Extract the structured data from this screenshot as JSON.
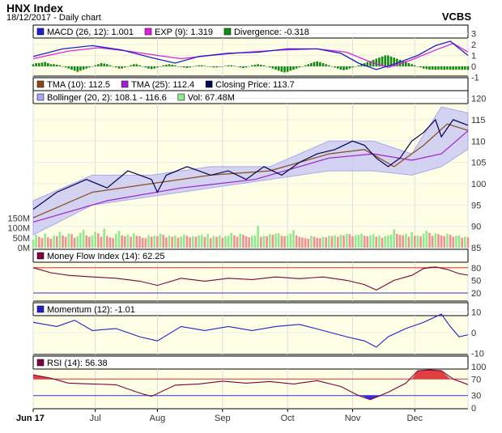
{
  "header": {
    "title": "HNX Index",
    "subtitle": "18/12/2017 - Daily chart",
    "brand": "VCBS"
  },
  "panels": {
    "macd": {
      "legend": [
        {
          "label": "MACD (26, 12): 1.001",
          "color": "#1f1fd0"
        },
        {
          "label": "EXP (9): 1.319",
          "color": "#e020e0"
        },
        {
          "label": "Divergence: -0.318",
          "color": "#128a12"
        }
      ],
      "y_ticks": [
        "3",
        "2",
        "1",
        "0",
        "-1"
      ]
    },
    "price": {
      "legend_row1": [
        {
          "label": "TMA (10): 112.5",
          "color": "#8a4a1a"
        },
        {
          "label": "TMA (25): 112.4",
          "color": "#a020d0"
        },
        {
          "label": "Closing Price: 113.7",
          "color": "#000050"
        }
      ],
      "legend_row2": [
        {
          "label": "Bollinger (20, 2): 108.1 - 116.6",
          "color": "#a8a8f0"
        },
        {
          "label": "Vol: 67.48M",
          "color": "#90e890"
        }
      ],
      "y_ticks": [
        "120",
        "115",
        "110",
        "105",
        "100",
        "95",
        "90",
        "85"
      ],
      "vol_ticks": [
        "150M",
        "100M",
        "50M",
        "0M"
      ]
    },
    "mfi": {
      "legend": [
        {
          "label": "Money Flow Index (14): 62.25",
          "color": "#800040"
        }
      ],
      "y_ticks": [
        "80",
        "50",
        "20"
      ]
    },
    "momentum": {
      "legend": [
        {
          "label": "Momentum (12): -1.01",
          "color": "#1f1fd0"
        }
      ],
      "y_ticks": [
        "10",
        "0",
        "-10"
      ]
    },
    "rsi": {
      "legend": [
        {
          "label": "RSI (14): 56.38",
          "color": "#800040"
        }
      ],
      "y_ticks": [
        "100",
        "70",
        "30",
        "0"
      ]
    }
  },
  "x_axis": {
    "labels": [
      "Jun 17",
      "Jul",
      "Aug",
      "Sep",
      "Oct",
      "Nov",
      "Dec"
    ]
  },
  "chart_data": {
    "type": "line",
    "title": "HNX Index",
    "subtitle": "18/12/2017 - Daily chart",
    "price_ylim": [
      85,
      122
    ],
    "volume_ylim": [
      0,
      150
    ],
    "volume_unit": "M",
    "months": [
      "Jun 17",
      "Jul",
      "Aug",
      "Sep",
      "Oct",
      "Nov",
      "Dec"
    ],
    "closing_price": [
      [
        0,
        94
      ],
      [
        8,
        98
      ],
      [
        18,
        101
      ],
      [
        25,
        99
      ],
      [
        32,
        103
      ],
      [
        40,
        101
      ],
      [
        42,
        98
      ],
      [
        45,
        102
      ],
      [
        52,
        104
      ],
      [
        60,
        102
      ],
      [
        66,
        103
      ],
      [
        72,
        101
      ],
      [
        78,
        104
      ],
      [
        84,
        102
      ],
      [
        90,
        105
      ],
      [
        96,
        107
      ],
      [
        102,
        108
      ],
      [
        108,
        110
      ],
      [
        112,
        109
      ],
      [
        116,
        106
      ],
      [
        120,
        104
      ],
      [
        124,
        106
      ],
      [
        128,
        110
      ],
      [
        132,
        112
      ],
      [
        136,
        115
      ],
      [
        138,
        111
      ],
      [
        142,
        115
      ],
      [
        147,
        113.7
      ]
    ],
    "tma10": [
      [
        0,
        92
      ],
      [
        20,
        98
      ],
      [
        40,
        100
      ],
      [
        60,
        102
      ],
      [
        80,
        103
      ],
      [
        100,
        107
      ],
      [
        112,
        108
      ],
      [
        122,
        104
      ],
      [
        132,
        109
      ],
      [
        140,
        114
      ],
      [
        147,
        112.5
      ]
    ],
    "tma25": [
      [
        0,
        91
      ],
      [
        25,
        96
      ],
      [
        50,
        99
      ],
      [
        75,
        101
      ],
      [
        100,
        106
      ],
      [
        115,
        107
      ],
      [
        128,
        105.5
      ],
      [
        138,
        107
      ],
      [
        147,
        112.4
      ]
    ],
    "bollinger_upper": [
      [
        0,
        96
      ],
      [
        20,
        102
      ],
      [
        40,
        102
      ],
      [
        60,
        104
      ],
      [
        80,
        104
      ],
      [
        100,
        110
      ],
      [
        115,
        110
      ],
      [
        128,
        107
      ],
      [
        138,
        118
      ],
      [
        147,
        116.6
      ]
    ],
    "bollinger_lower": [
      [
        0,
        88
      ],
      [
        20,
        95
      ],
      [
        40,
        97
      ],
      [
        60,
        99
      ],
      [
        80,
        101
      ],
      [
        100,
        103
      ],
      [
        115,
        103
      ],
      [
        128,
        102
      ],
      [
        138,
        104
      ],
      [
        147,
        108.1
      ]
    ],
    "volume_M": [
      40,
      65,
      55,
      48,
      70,
      52,
      45,
      60,
      58,
      80,
      62,
      55,
      70,
      68,
      50,
      58,
      75,
      90,
      62,
      55,
      60,
      80,
      72,
      55,
      95,
      60,
      52,
      48,
      70,
      85,
      62,
      58,
      65,
      55,
      72,
      60,
      58,
      50,
      48,
      62,
      55,
      60,
      58,
      70,
      65,
      52,
      60,
      55,
      62,
      50,
      57,
      65,
      60,
      52,
      58,
      55,
      62,
      64,
      54,
      68,
      48,
      60,
      55,
      62,
      50,
      58,
      60,
      75,
      62,
      55,
      70,
      65,
      58,
      52,
      60,
      62,
      110,
      55,
      60,
      58,
      68,
      65,
      70,
      72,
      60,
      58,
      62,
      70,
      88,
      62,
      55,
      52,
      48,
      45,
      60,
      55,
      50,
      48,
      55,
      52,
      60,
      58,
      62,
      55,
      65,
      62,
      70,
      68,
      58,
      62,
      65,
      70,
      60,
      58,
      62,
      68,
      55,
      60,
      50,
      58,
      62,
      65,
      92,
      70,
      65,
      62,
      70,
      55,
      78,
      60,
      62,
      58,
      70,
      85,
      75,
      60,
      72,
      68,
      62,
      58,
      70,
      65,
      55,
      60,
      62,
      50,
      55,
      52
    ],
    "macd": [
      [
        0,
        0.9
      ],
      [
        10,
        1.6
      ],
      [
        20,
        1.9
      ],
      [
        30,
        1.5
      ],
      [
        40,
        0.8
      ],
      [
        48,
        0.3
      ],
      [
        56,
        0.9
      ],
      [
        66,
        1.2
      ],
      [
        76,
        1.3
      ],
      [
        86,
        1.6
      ],
      [
        96,
        1.6
      ],
      [
        104,
        1.2
      ],
      [
        110,
        0.3
      ],
      [
        116,
        -0.3
      ],
      [
        122,
        0.2
      ],
      [
        130,
        1.0
      ],
      [
        136,
        1.9
      ],
      [
        141,
        2.3
      ],
      [
        147,
        1.0
      ]
    ],
    "exp": [
      [
        0,
        0.7
      ],
      [
        12,
        1.4
      ],
      [
        22,
        1.7
      ],
      [
        32,
        1.4
      ],
      [
        42,
        1.0
      ],
      [
        50,
        0.7
      ],
      [
        60,
        1.0
      ],
      [
        72,
        1.3
      ],
      [
        84,
        1.5
      ],
      [
        96,
        1.6
      ],
      [
        106,
        1.3
      ],
      [
        114,
        0.4
      ],
      [
        120,
        -0.1
      ],
      [
        128,
        0.6
      ],
      [
        136,
        1.5
      ],
      [
        142,
        2.1
      ],
      [
        147,
        1.32
      ]
    ],
    "divergence": [
      0.2,
      0.3,
      0.3,
      0.35,
      0.4,
      0.3,
      0.2,
      0.2,
      0.15,
      0.1,
      0.0,
      -0.1,
      -0.2,
      -0.3,
      -0.4,
      -0.5,
      -0.4,
      -0.3,
      -0.2,
      -0.1,
      0.0,
      0.1,
      0.2,
      0.3,
      0.25,
      0.2,
      0.1,
      0.0,
      -0.1,
      -0.2,
      -0.2,
      -0.1,
      0.0,
      0.1,
      0.2,
      0.2,
      0.1,
      0.0,
      -0.1,
      -0.2,
      -0.25,
      -0.2,
      -0.1,
      0.0,
      0.1,
      0.15,
      0.2,
      0.15,
      0.1,
      0.0,
      -0.05,
      -0.1,
      -0.15,
      -0.1,
      0.0,
      0.05,
      0.1,
      0.1,
      0.05,
      0.0,
      -0.05,
      -0.1,
      -0.1,
      -0.05,
      0.0,
      0.05,
      0.1,
      0.1,
      0.05,
      0.0,
      -0.1,
      -0.15,
      -0.1,
      0.0,
      0.1,
      0.15,
      0.2,
      0.15,
      0.1,
      0.0,
      -0.1,
      -0.2,
      -0.3,
      -0.4,
      -0.5,
      -0.55,
      -0.5,
      -0.4,
      -0.3,
      -0.2,
      -0.1,
      0.0,
      0.1,
      0.2,
      0.3,
      0.4,
      0.45,
      0.4,
      0.3,
      0.2,
      0.1,
      0.0,
      -0.1,
      -0.2,
      -0.3,
      -0.35,
      -0.3,
      -0.2,
      -0.1,
      0.0,
      0.1,
      0.2,
      0.3,
      0.4,
      0.5,
      0.6,
      0.7,
      0.8,
      0.9,
      1.0,
      1.0,
      0.9,
      0.8,
      0.7,
      0.6,
      0.5,
      0.4,
      0.3,
      0.2,
      0.1,
      0.0,
      -0.1,
      -0.2,
      -0.25,
      -0.3,
      -0.3,
      -0.32,
      -0.3,
      -0.3,
      -0.32,
      -0.3,
      -0.31,
      -0.32,
      -0.31,
      -0.3,
      -0.32,
      -0.31,
      -0.318
    ],
    "mfi": [
      [
        0,
        80
      ],
      [
        6,
        68
      ],
      [
        12,
        62
      ],
      [
        20,
        58
      ],
      [
        28,
        55
      ],
      [
        36,
        48
      ],
      [
        42,
        38
      ],
      [
        50,
        55
      ],
      [
        58,
        48
      ],
      [
        66,
        55
      ],
      [
        74,
        52
      ],
      [
        82,
        58
      ],
      [
        90,
        54
      ],
      [
        98,
        58
      ],
      [
        106,
        50
      ],
      [
        112,
        40
      ],
      [
        116,
        27
      ],
      [
        122,
        50
      ],
      [
        128,
        62
      ],
      [
        132,
        78
      ],
      [
        136,
        82
      ],
      [
        140,
        76
      ],
      [
        144,
        66
      ],
      [
        147,
        62.25
      ]
    ],
    "momentum": [
      [
        0,
        5
      ],
      [
        8,
        3
      ],
      [
        14,
        6
      ],
      [
        20,
        1
      ],
      [
        28,
        2
      ],
      [
        36,
        -2
      ],
      [
        42,
        -4
      ],
      [
        50,
        3
      ],
      [
        58,
        1
      ],
      [
        66,
        3
      ],
      [
        74,
        1
      ],
      [
        82,
        3
      ],
      [
        90,
        4
      ],
      [
        98,
        1
      ],
      [
        106,
        -2
      ],
      [
        112,
        -4
      ],
      [
        116,
        -7
      ],
      [
        120,
        -2
      ],
      [
        126,
        2
      ],
      [
        132,
        5
      ],
      [
        138,
        9
      ],
      [
        141,
        3
      ],
      [
        144,
        -2
      ],
      [
        147,
        -1.01
      ]
    ],
    "rsi": [
      [
        0,
        80
      ],
      [
        6,
        72
      ],
      [
        12,
        60
      ],
      [
        20,
        58
      ],
      [
        28,
        56
      ],
      [
        36,
        36
      ],
      [
        40,
        28
      ],
      [
        48,
        55
      ],
      [
        56,
        58
      ],
      [
        64,
        65
      ],
      [
        72,
        60
      ],
      [
        80,
        64
      ],
      [
        88,
        58
      ],
      [
        96,
        66
      ],
      [
        104,
        52
      ],
      [
        110,
        30
      ],
      [
        114,
        20
      ],
      [
        120,
        38
      ],
      [
        126,
        60
      ],
      [
        130,
        90
      ],
      [
        134,
        92
      ],
      [
        138,
        90
      ],
      [
        142,
        70
      ],
      [
        147,
        56.38
      ]
    ]
  }
}
